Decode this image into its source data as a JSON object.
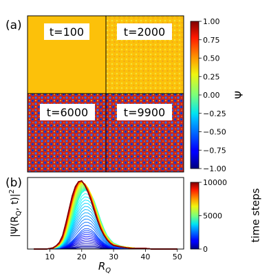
{
  "panel_a": {
    "label": "(a)",
    "tiles": [
      {
        "time_label": "t=100",
        "fill": "#fcc10a",
        "pattern": "none"
      },
      {
        "time_label": "t=2000",
        "fill": "#fcc10a",
        "pattern": "faint"
      },
      {
        "time_label": "t=6000",
        "fill": "#c9221a",
        "pattern": "dots"
      },
      {
        "time_label": "t=9900",
        "fill": "#c9221a",
        "pattern": "dots"
      }
    ],
    "colorbar": {
      "label": "Ψ",
      "ticks": [
        "1.00",
        "0.75",
        "0.50",
        "0.25",
        "0.00",
        "−0.25",
        "−0.50",
        "−0.75",
        "−1.00"
      ],
      "range": [
        -1,
        1
      ],
      "colormap": "jet"
    }
  },
  "panel_b": {
    "label": "(b)",
    "xlabel": "R",
    "xlabel_sub": "Q",
    "ylabel": "|Ψ(R",
    "ylabel_sub": "Q",
    "ylabel_tail": ", t)|",
    "ylabel_sup": "2",
    "colorbar": {
      "label": "time steps",
      "ticks": [
        "10000",
        "5000",
        "0"
      ],
      "range": [
        0,
        10000
      ],
      "colormap": "jet"
    }
  },
  "chart_data": {
    "type": "line",
    "x_ticks": [
      "10",
      "20",
      "30",
      "40",
      "50"
    ],
    "xlim": [
      3,
      52
    ],
    "ylim": [
      0,
      1.05
    ],
    "series_count": 60,
    "time_range": [
      0,
      10000
    ],
    "x": [
      5,
      7,
      9,
      11,
      12,
      13,
      14,
      15,
      16,
      17,
      18,
      19,
      20,
      21,
      22,
      23,
      24,
      25,
      26,
      27,
      28,
      29,
      30,
      32,
      34,
      36,
      38,
      40,
      42,
      45,
      48,
      50
    ],
    "series": [
      {
        "t": 500,
        "values": [
          0.0,
          0.0,
          0.0,
          0.0,
          0.0,
          0.01,
          0.01,
          0.02,
          0.02,
          0.03,
          0.03,
          0.04,
          0.05,
          0.05,
          0.05,
          0.05,
          0.05,
          0.04,
          0.03,
          0.02,
          0.02,
          0.01,
          0.01,
          0.0,
          0.0,
          0.0,
          0.0,
          0.0,
          0.0,
          0.0,
          0.0,
          0.0
        ]
      },
      {
        "t": 2000,
        "values": [
          0.0,
          0.0,
          0.0,
          0.0,
          0.01,
          0.01,
          0.03,
          0.05,
          0.08,
          0.12,
          0.17,
          0.22,
          0.27,
          0.3,
          0.3,
          0.28,
          0.24,
          0.18,
          0.13,
          0.09,
          0.06,
          0.04,
          0.03,
          0.02,
          0.01,
          0.01,
          0.0,
          0.0,
          0.0,
          0.0,
          0.0,
          0.0
        ]
      },
      {
        "t": 4000,
        "values": [
          0.0,
          0.0,
          0.0,
          0.01,
          0.02,
          0.04,
          0.08,
          0.15,
          0.27,
          0.42,
          0.58,
          0.72,
          0.82,
          0.86,
          0.85,
          0.8,
          0.7,
          0.56,
          0.42,
          0.3,
          0.2,
          0.14,
          0.09,
          0.05,
          0.03,
          0.02,
          0.01,
          0.01,
          0.0,
          0.0,
          0.0,
          0.0
        ]
      },
      {
        "t": 6000,
        "values": [
          0.0,
          0.0,
          0.0,
          0.01,
          0.03,
          0.06,
          0.12,
          0.24,
          0.42,
          0.62,
          0.8,
          0.92,
          0.97,
          0.96,
          0.9,
          0.8,
          0.65,
          0.5,
          0.36,
          0.25,
          0.17,
          0.11,
          0.07,
          0.04,
          0.03,
          0.02,
          0.01,
          0.01,
          0.0,
          0.0,
          0.0,
          0.0
        ]
      },
      {
        "t": 8000,
        "values": [
          0.0,
          0.0,
          0.0,
          0.01,
          0.04,
          0.08,
          0.16,
          0.32,
          0.52,
          0.72,
          0.88,
          0.98,
          1.0,
          0.95,
          0.86,
          0.74,
          0.59,
          0.44,
          0.31,
          0.21,
          0.14,
          0.09,
          0.06,
          0.04,
          0.02,
          0.01,
          0.01,
          0.01,
          0.0,
          0.0,
          0.0,
          0.0
        ]
      },
      {
        "t": 10000,
        "values": [
          0.0,
          0.0,
          0.0,
          0.02,
          0.05,
          0.1,
          0.2,
          0.38,
          0.58,
          0.78,
          0.92,
          0.99,
          1.0,
          0.93,
          0.83,
          0.7,
          0.55,
          0.41,
          0.29,
          0.2,
          0.13,
          0.08,
          0.05,
          0.03,
          0.02,
          0.01,
          0.01,
          0.01,
          0.0,
          0.0,
          0.0,
          0.0
        ]
      }
    ]
  }
}
